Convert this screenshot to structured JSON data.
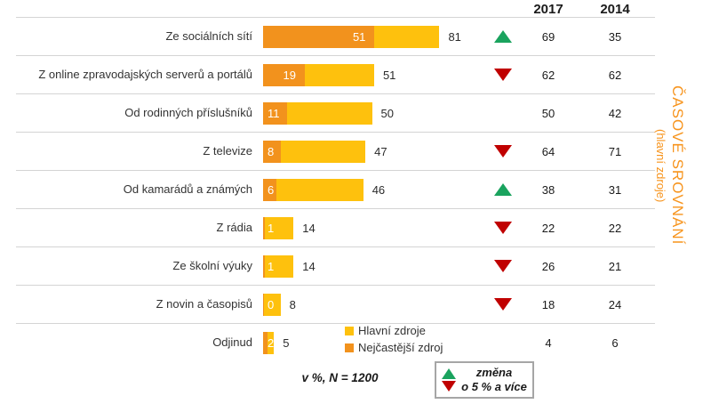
{
  "chart_data": {
    "type": "bar",
    "orientation": "horizontal",
    "title_vertical": "ČASOVÉ SROVNÁNÍ",
    "subtitle_vertical": "(hlavní zdroje)",
    "note": "v %, N = 1200",
    "unit": "%",
    "xlim": [
      0,
      100
    ],
    "categories": [
      "Ze sociálních sítí",
      "Z online zpravodajských serverů a portálů",
      "Od rodinných příslušníků",
      "Z televize",
      "Od kamarádů a známých",
      "Z rádia",
      "Ze školní výuky",
      "Z novin a časopisů",
      "Odjinud"
    ],
    "series": [
      {
        "name": "Hlavní zdroje",
        "color": "#fec10d",
        "values": [
          81,
          51,
          50,
          47,
          46,
          14,
          14,
          8,
          5
        ]
      },
      {
        "name": "Nejčastější zdroj",
        "color": "#f2921d",
        "values": [
          51,
          19,
          11,
          8,
          6,
          1,
          1,
          0,
          2
        ]
      }
    ],
    "comparison": {
      "years": [
        "2017",
        "2014"
      ],
      "values_2017": [
        69,
        62,
        50,
        64,
        38,
        22,
        26,
        18,
        4
      ],
      "values_2014": [
        35,
        62,
        42,
        71,
        31,
        22,
        21,
        24,
        6
      ]
    },
    "trend": [
      "up",
      "down",
      "none",
      "down",
      "up",
      "down",
      "down",
      "down",
      "none"
    ],
    "legend_position": "bottom"
  },
  "change_legend": {
    "line1": "změna",
    "line2": "o 5 % a více"
  },
  "colors": {
    "bar_main": "#fec10d",
    "bar_most": "#f2921d",
    "arrow_up": "#1aa35e",
    "arrow_down": "#c00000",
    "grid_line": "#d4d4d4",
    "vertical_title": "#f7941d"
  }
}
